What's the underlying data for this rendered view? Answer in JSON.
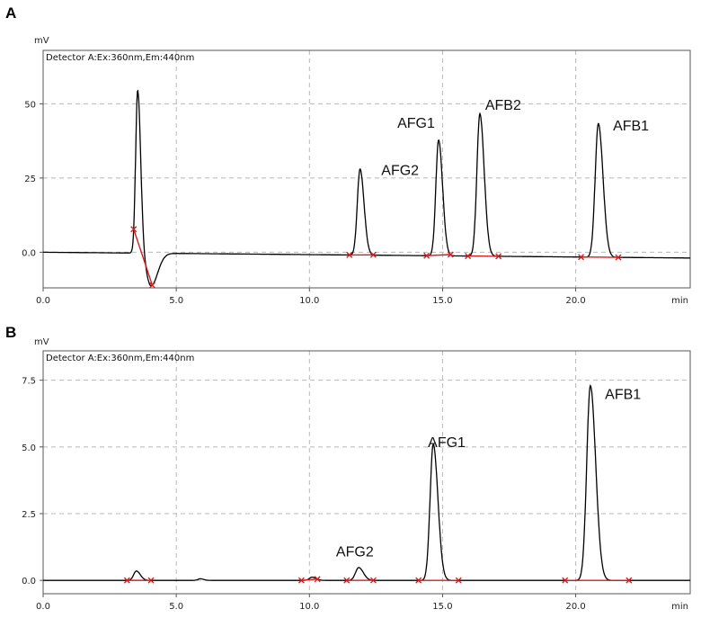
{
  "chart_data": [
    {
      "panel": "A",
      "type": "line",
      "detector": "Detector A:Ex:360nm,Em:440nm",
      "ylabel": "mV",
      "xlabel": "min",
      "xlim": [
        0,
        24.3
      ],
      "ylim": [
        -12,
        68
      ],
      "x_ticks": [
        "0.0",
        "5.0",
        "10.0",
        "15.0",
        "20.0"
      ],
      "x_tick_values": [
        0,
        5,
        10,
        15,
        20
      ],
      "y_ticks": [
        "0.0",
        "25",
        "50"
      ],
      "y_tick_values": [
        0,
        25,
        50
      ],
      "grid": true,
      "baseline": {
        "start": 0.0,
        "drift": -0.08
      },
      "peaks": [
        {
          "name": "",
          "rt": 3.55,
          "height": 55,
          "width": 0.09
        },
        {
          "name": "",
          "rt": 4.05,
          "height": -11,
          "width": 0.2
        },
        {
          "name": "AFG2",
          "rt": 11.9,
          "height": 29,
          "width": 0.12
        },
        {
          "name": "AFG1",
          "rt": 14.85,
          "height": 39,
          "width": 0.12
        },
        {
          "name": "AFB2",
          "rt": 16.4,
          "height": 48,
          "width": 0.13
        },
        {
          "name": "AFB1",
          "rt": 20.85,
          "height": 45,
          "width": 0.14
        }
      ],
      "integration_segments": [
        [
          3.4,
          4.1
        ],
        [
          11.5,
          12.4
        ],
        [
          14.4,
          15.3
        ],
        [
          15.95,
          17.1
        ],
        [
          20.2,
          21.6
        ]
      ],
      "labels": [
        {
          "text": "AFG2",
          "x": 12.7,
          "y": 26
        },
        {
          "text": "AFG1",
          "x": 13.3,
          "y": 42
        },
        {
          "text": "AFB2",
          "x": 16.6,
          "y": 48
        },
        {
          "text": "AFB1",
          "x": 21.4,
          "y": 41
        }
      ]
    },
    {
      "panel": "B",
      "type": "line",
      "detector": "Detector A:Ex:360nm,Em:440nm",
      "ylabel": "mV",
      "xlabel": "min",
      "xlim": [
        0,
        24.3
      ],
      "ylim": [
        -0.5,
        8.6
      ],
      "x_ticks": [
        "0.0",
        "5.0",
        "10.0",
        "15.0",
        "20.0"
      ],
      "x_tick_values": [
        0,
        5,
        10,
        15,
        20
      ],
      "y_ticks": [
        "0.0",
        "2.5",
        "5.0",
        "7.5"
      ],
      "y_tick_values": [
        0,
        2.5,
        5,
        7.5
      ],
      "grid": true,
      "baseline": {
        "start": 0.0,
        "drift": 0.0
      },
      "peaks": [
        {
          "name": "",
          "rt": 3.5,
          "height": 0.35,
          "width": 0.12
        },
        {
          "name": "",
          "rt": 5.9,
          "height": 0.06,
          "width": 0.1
        },
        {
          "name": "",
          "rt": 10.1,
          "height": 0.12,
          "width": 0.12
        },
        {
          "name": "AFG2",
          "rt": 11.85,
          "height": 0.48,
          "width": 0.14
        },
        {
          "name": "AFG1",
          "rt": 14.65,
          "height": 5.1,
          "width": 0.14
        },
        {
          "name": "AFB1",
          "rt": 20.55,
          "height": 7.3,
          "width": 0.16
        }
      ],
      "integration_segments": [
        [
          3.15,
          4.05
        ],
        [
          9.7,
          10.3
        ],
        [
          11.4,
          12.4
        ],
        [
          14.1,
          15.6
        ],
        [
          19.6,
          22.0
        ]
      ],
      "labels": [
        {
          "text": "AFG2",
          "x": 11.0,
          "y": 0.9
        },
        {
          "text": "AFG1",
          "x": 14.45,
          "y": 5.0
        },
        {
          "text": "AFB1",
          "x": 21.1,
          "y": 6.8
        }
      ]
    }
  ]
}
